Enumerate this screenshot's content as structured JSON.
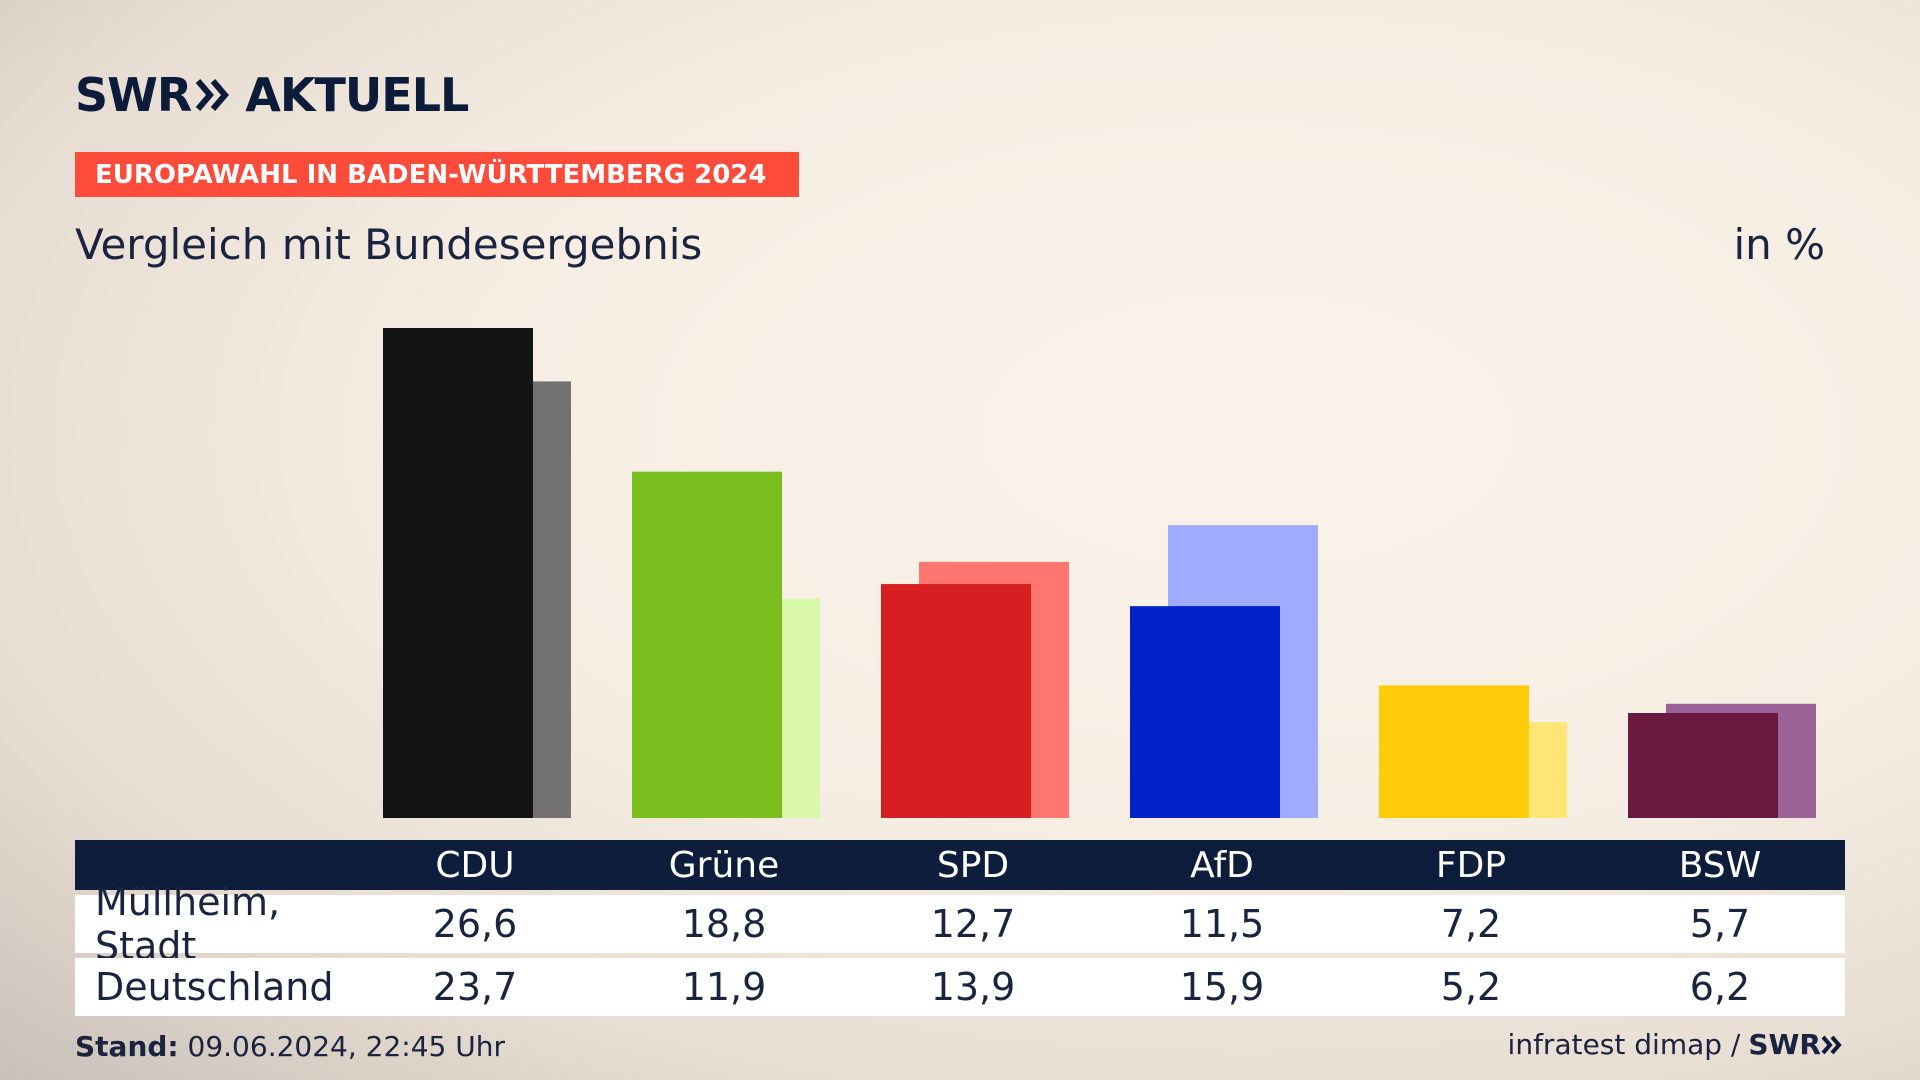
{
  "brand": {
    "logo_left": "SWR",
    "logo_right": "AKTUELL"
  },
  "banner": {
    "text": "EUROPAWAHL IN BADEN-WÜRTTEMBERG 2024"
  },
  "subtitle": "Vergleich mit Bundesergebnis",
  "unit": "in %",
  "footer": {
    "stand_label": "Stand:",
    "stand_value": "09.06.2024, 22:45 Uhr",
    "source": "infratest dimap /",
    "source_logo": "SWR"
  },
  "table": {
    "rows": [
      {
        "label": "Müllheim, Stadt",
        "values": [
          "26,6",
          "18,8",
          "12,7",
          "11,5",
          "7,2",
          "5,7"
        ]
      },
      {
        "label": "Deutschland",
        "values": [
          "23,7",
          "11,9",
          "13,9",
          "15,9",
          "5,2",
          "6,2"
        ]
      }
    ]
  },
  "chart_data": {
    "type": "bar",
    "categories": [
      "CDU",
      "Grüne",
      "SPD",
      "AfD",
      "FDP",
      "BSW"
    ],
    "series": [
      {
        "name": "Müllheim, Stadt",
        "values": [
          26.6,
          18.8,
          12.7,
          11.5,
          7.2,
          5.7
        ],
        "colors": [
          "#141414",
          "#79bd1f",
          "#d71f21",
          "#0022c8",
          "#ffcc0a",
          "#6a1a40"
        ]
      },
      {
        "name": "Deutschland",
        "values": [
          23.7,
          11.9,
          13.9,
          15.9,
          5.2,
          6.2
        ],
        "colors": [
          "#737171",
          "#d8f7a9",
          "#ff7570",
          "#9eabff",
          "#ffe476",
          "#9b6298"
        ]
      }
    ],
    "ylim": [
      0,
      26.6
    ],
    "grid": false,
    "legend": "table-below",
    "title": "Vergleich mit Bundesergebnis",
    "ylabel": "in %"
  }
}
